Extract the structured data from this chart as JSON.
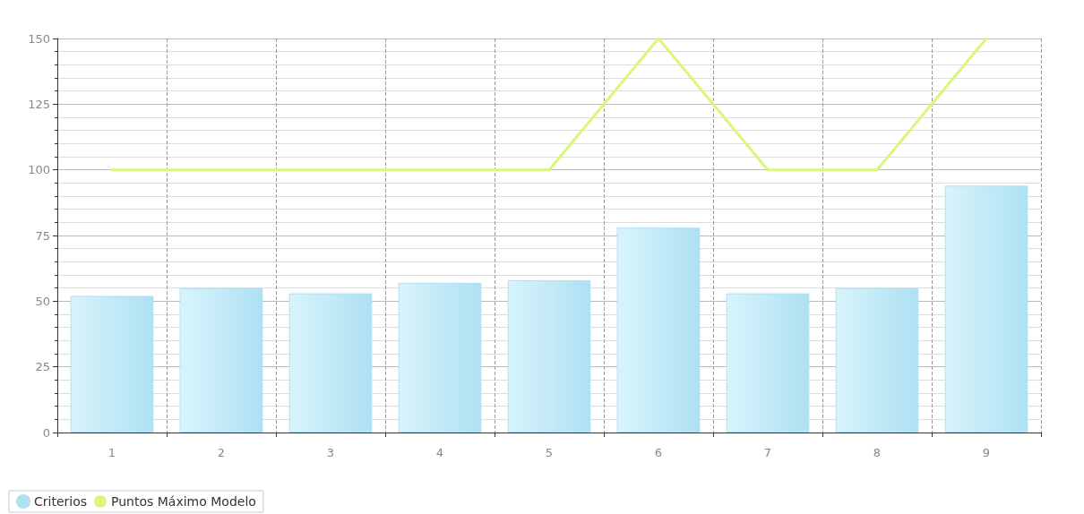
{
  "chart_data": {
    "type": "bar",
    "categories": [
      "1",
      "2",
      "3",
      "4",
      "5",
      "6",
      "7",
      "8",
      "9"
    ],
    "series": [
      {
        "name": "Criterios",
        "color": "#aee0f2",
        "values": [
          52,
          55,
          53,
          57,
          58,
          78,
          53,
          55,
          94
        ]
      },
      {
        "name": "Puntos Máximo Modelo",
        "type": "line",
        "color": "#d9f77a",
        "values": [
          100,
          100,
          100,
          100,
          100,
          150,
          100,
          100,
          150
        ]
      }
    ],
    "ylim": [
      0,
      150
    ],
    "yticks": [
      0,
      25,
      50,
      75,
      100,
      125,
      150
    ],
    "grid": true,
    "legend": "bottom left",
    "marker": "none",
    "line_style": "solid"
  }
}
